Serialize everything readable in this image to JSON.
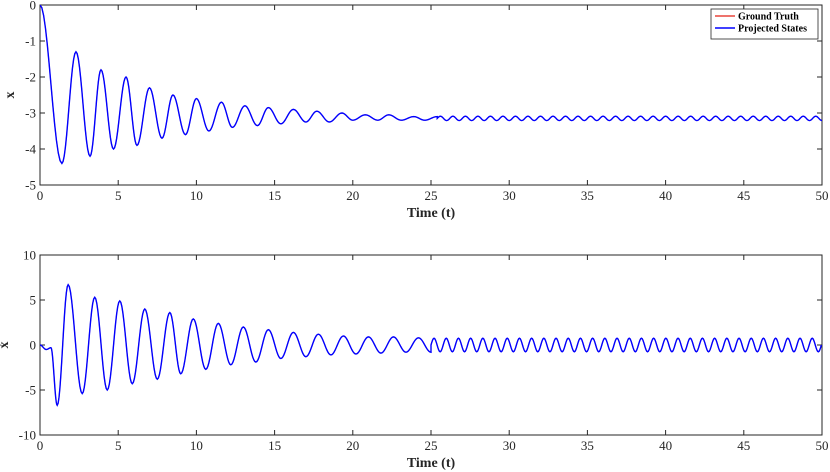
{
  "chart_data": [
    {
      "type": "line",
      "xlabel": "Time (t)",
      "ylabel": "x",
      "xlim": [
        0,
        50
      ],
      "ylim": [
        -5,
        0
      ],
      "xticks": [
        0,
        5,
        10,
        15,
        20,
        25,
        30,
        35,
        40,
        45,
        50
      ],
      "yticks": [
        0,
        -1,
        -2,
        -3,
        -4,
        -5
      ],
      "legend": {
        "placement": "top-right",
        "entries": [
          "Ground Truth",
          "Projected States"
        ]
      },
      "series": [
        {
          "name": "Ground Truth",
          "color": "#e8453c",
          "x": [
            0,
            1.4,
            2.3,
            3.2,
            3.9,
            4.7,
            5.5,
            6.2,
            7.0,
            7.8,
            8.5,
            9.3,
            10.0,
            10.8,
            11.6,
            12.3,
            13.1,
            13.9,
            14.6,
            15.4,
            16.2,
            17.0,
            17.7,
            18.5,
            19.3,
            20.0,
            20.8,
            21.6,
            22.3,
            23.1,
            23.9,
            24.6,
            25.4,
            30.0,
            35.0,
            40.0,
            45.0,
            50.0
          ],
          "y": [
            0,
            -4.4,
            -1.3,
            -4.2,
            -1.8,
            -4.0,
            -2.0,
            -3.9,
            -2.3,
            -3.7,
            -2.5,
            -3.6,
            -2.6,
            -3.5,
            -2.7,
            -3.4,
            -2.8,
            -3.35,
            -2.85,
            -3.3,
            -2.9,
            -3.25,
            -2.95,
            -3.25,
            -3.0,
            -3.2,
            -3.05,
            -3.2,
            -3.05,
            -3.2,
            -3.1,
            -3.2,
            -3.1,
            -3.15,
            -3.15,
            -3.15,
            -3.15,
            -3.15
          ]
        },
        {
          "name": "Projected States",
          "color": "#0000ff",
          "x": [
            0,
            1.4,
            2.3,
            3.2,
            3.9,
            4.7,
            5.5,
            6.2,
            7.0,
            7.8,
            8.5,
            9.3,
            10.0,
            10.8,
            11.6,
            12.3,
            13.1,
            13.9,
            14.6,
            15.4,
            16.2,
            17.0,
            17.7,
            18.5,
            19.3,
            20.0,
            20.8,
            21.6,
            22.3,
            23.1,
            23.9,
            24.6,
            25.4,
            30.0,
            35.0,
            40.0,
            45.0,
            50.0
          ],
          "y": [
            0,
            -4.4,
            -1.3,
            -4.2,
            -1.8,
            -4.0,
            -2.0,
            -3.9,
            -2.3,
            -3.7,
            -2.5,
            -3.6,
            -2.6,
            -3.5,
            -2.7,
            -3.4,
            -2.8,
            -3.35,
            -2.85,
            -3.3,
            -2.9,
            -3.25,
            -2.95,
            -3.25,
            -3.0,
            -3.2,
            -3.05,
            -3.2,
            -3.05,
            -3.2,
            -3.1,
            -3.2,
            -3.1,
            -3.15,
            -3.15,
            -3.15,
            -3.15,
            -3.15
          ]
        }
      ]
    },
    {
      "type": "line",
      "xlabel": "Time (t)",
      "ylabel": "ẋ",
      "xlim": [
        0,
        50
      ],
      "ylim": [
        -10,
        10
      ],
      "xticks": [
        0,
        5,
        10,
        15,
        20,
        25,
        30,
        35,
        40,
        45,
        50
      ],
      "yticks": [
        10,
        5,
        0,
        -5,
        -10
      ],
      "series": [
        {
          "name": "Ground Truth",
          "color": "#e8453c",
          "x": [
            0,
            0.4,
            0.7,
            1.1,
            1.8,
            2.7,
            3.5,
            4.3,
            5.1,
            5.9,
            6.7,
            7.5,
            8.3,
            9.0,
            9.8,
            10.6,
            11.4,
            12.2,
            13.0,
            13.8,
            14.6,
            15.4,
            16.2,
            17.0,
            17.8,
            18.6,
            19.4,
            20.2,
            21.0,
            21.8,
            22.6,
            23.4,
            24.2,
            25.0,
            30.0,
            35.0,
            40.0,
            45.0,
            50.0
          ],
          "y": [
            0,
            -0.5,
            -0.3,
            -6.7,
            6.7,
            -5.4,
            5.3,
            -5.0,
            4.9,
            -4.3,
            4.0,
            -3.8,
            3.6,
            -3.2,
            2.9,
            -2.7,
            2.4,
            -2.2,
            2.0,
            -1.9,
            1.7,
            -1.5,
            1.4,
            -1.3,
            1.2,
            -1.1,
            1.0,
            -1.0,
            0.9,
            -0.9,
            0.9,
            -0.8,
            0.8,
            -0.8,
            0.8,
            -0.75,
            0.75,
            -0.75,
            0.7
          ]
        },
        {
          "name": "Projected States",
          "color": "#0000ff",
          "x": [
            0,
            0.4,
            0.7,
            1.1,
            1.8,
            2.7,
            3.5,
            4.3,
            5.1,
            5.9,
            6.7,
            7.5,
            8.3,
            9.0,
            9.8,
            10.6,
            11.4,
            12.2,
            13.0,
            13.8,
            14.6,
            15.4,
            16.2,
            17.0,
            17.8,
            18.6,
            19.4,
            20.2,
            21.0,
            21.8,
            22.6,
            23.4,
            24.2,
            25.0,
            30.0,
            35.0,
            40.0,
            45.0,
            50.0
          ],
          "y": [
            0,
            -0.5,
            -0.3,
            -6.7,
            6.7,
            -5.4,
            5.3,
            -5.0,
            4.9,
            -4.3,
            4.0,
            -3.8,
            3.6,
            -3.2,
            2.9,
            -2.7,
            2.4,
            -2.2,
            2.0,
            -1.9,
            1.7,
            -1.5,
            1.4,
            -1.3,
            1.2,
            -1.1,
            1.0,
            -1.0,
            0.9,
            -0.9,
            0.9,
            -0.8,
            0.8,
            -0.8,
            0.8,
            -0.75,
            0.75,
            -0.75,
            0.7
          ]
        }
      ]
    }
  ]
}
